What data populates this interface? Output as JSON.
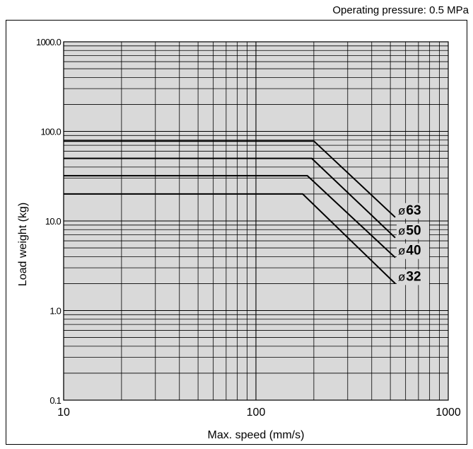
{
  "note": "Operating pressure: 0.5 MPa",
  "chart_data": {
    "type": "line",
    "title": "",
    "xlabel": "Max. speed (mm/s)",
    "ylabel": "Load weight (kg)",
    "x_scale": "log",
    "y_scale": "log",
    "xlim": [
      10,
      1000
    ],
    "ylim": [
      0.1,
      1000
    ],
    "x_ticks": [
      {
        "value": 10,
        "label": "10"
      },
      {
        "value": 100,
        "label": "100"
      },
      {
        "value": 1000,
        "label": "1000"
      }
    ],
    "y_ticks": [
      {
        "value": 1000,
        "label": "1000.0"
      },
      {
        "value": 100,
        "label": "100.0"
      },
      {
        "value": 10,
        "label": "10.0"
      },
      {
        "value": 1,
        "label": "1.0"
      },
      {
        "value": 0.1,
        "label": "0.1"
      }
    ],
    "grid": true,
    "colors": {
      "background": "#d9d9d9",
      "line": "#000000",
      "grid": "#000000"
    },
    "series": [
      {
        "prefix": "ø",
        "label": "63",
        "points": [
          [
            10,
            78
          ],
          [
            200,
            78
          ],
          [
            530,
            11
          ]
        ]
      },
      {
        "prefix": "ø",
        "label": "50",
        "points": [
          [
            10,
            50
          ],
          [
            195,
            50
          ],
          [
            530,
            6.5
          ]
        ]
      },
      {
        "prefix": "ø",
        "label": "40",
        "points": [
          [
            10,
            32
          ],
          [
            185,
            32
          ],
          [
            530,
            3.9
          ]
        ]
      },
      {
        "prefix": "ø",
        "label": "32",
        "points": [
          [
            10,
            20
          ],
          [
            175,
            20
          ],
          [
            530,
            2
          ]
        ]
      }
    ]
  }
}
